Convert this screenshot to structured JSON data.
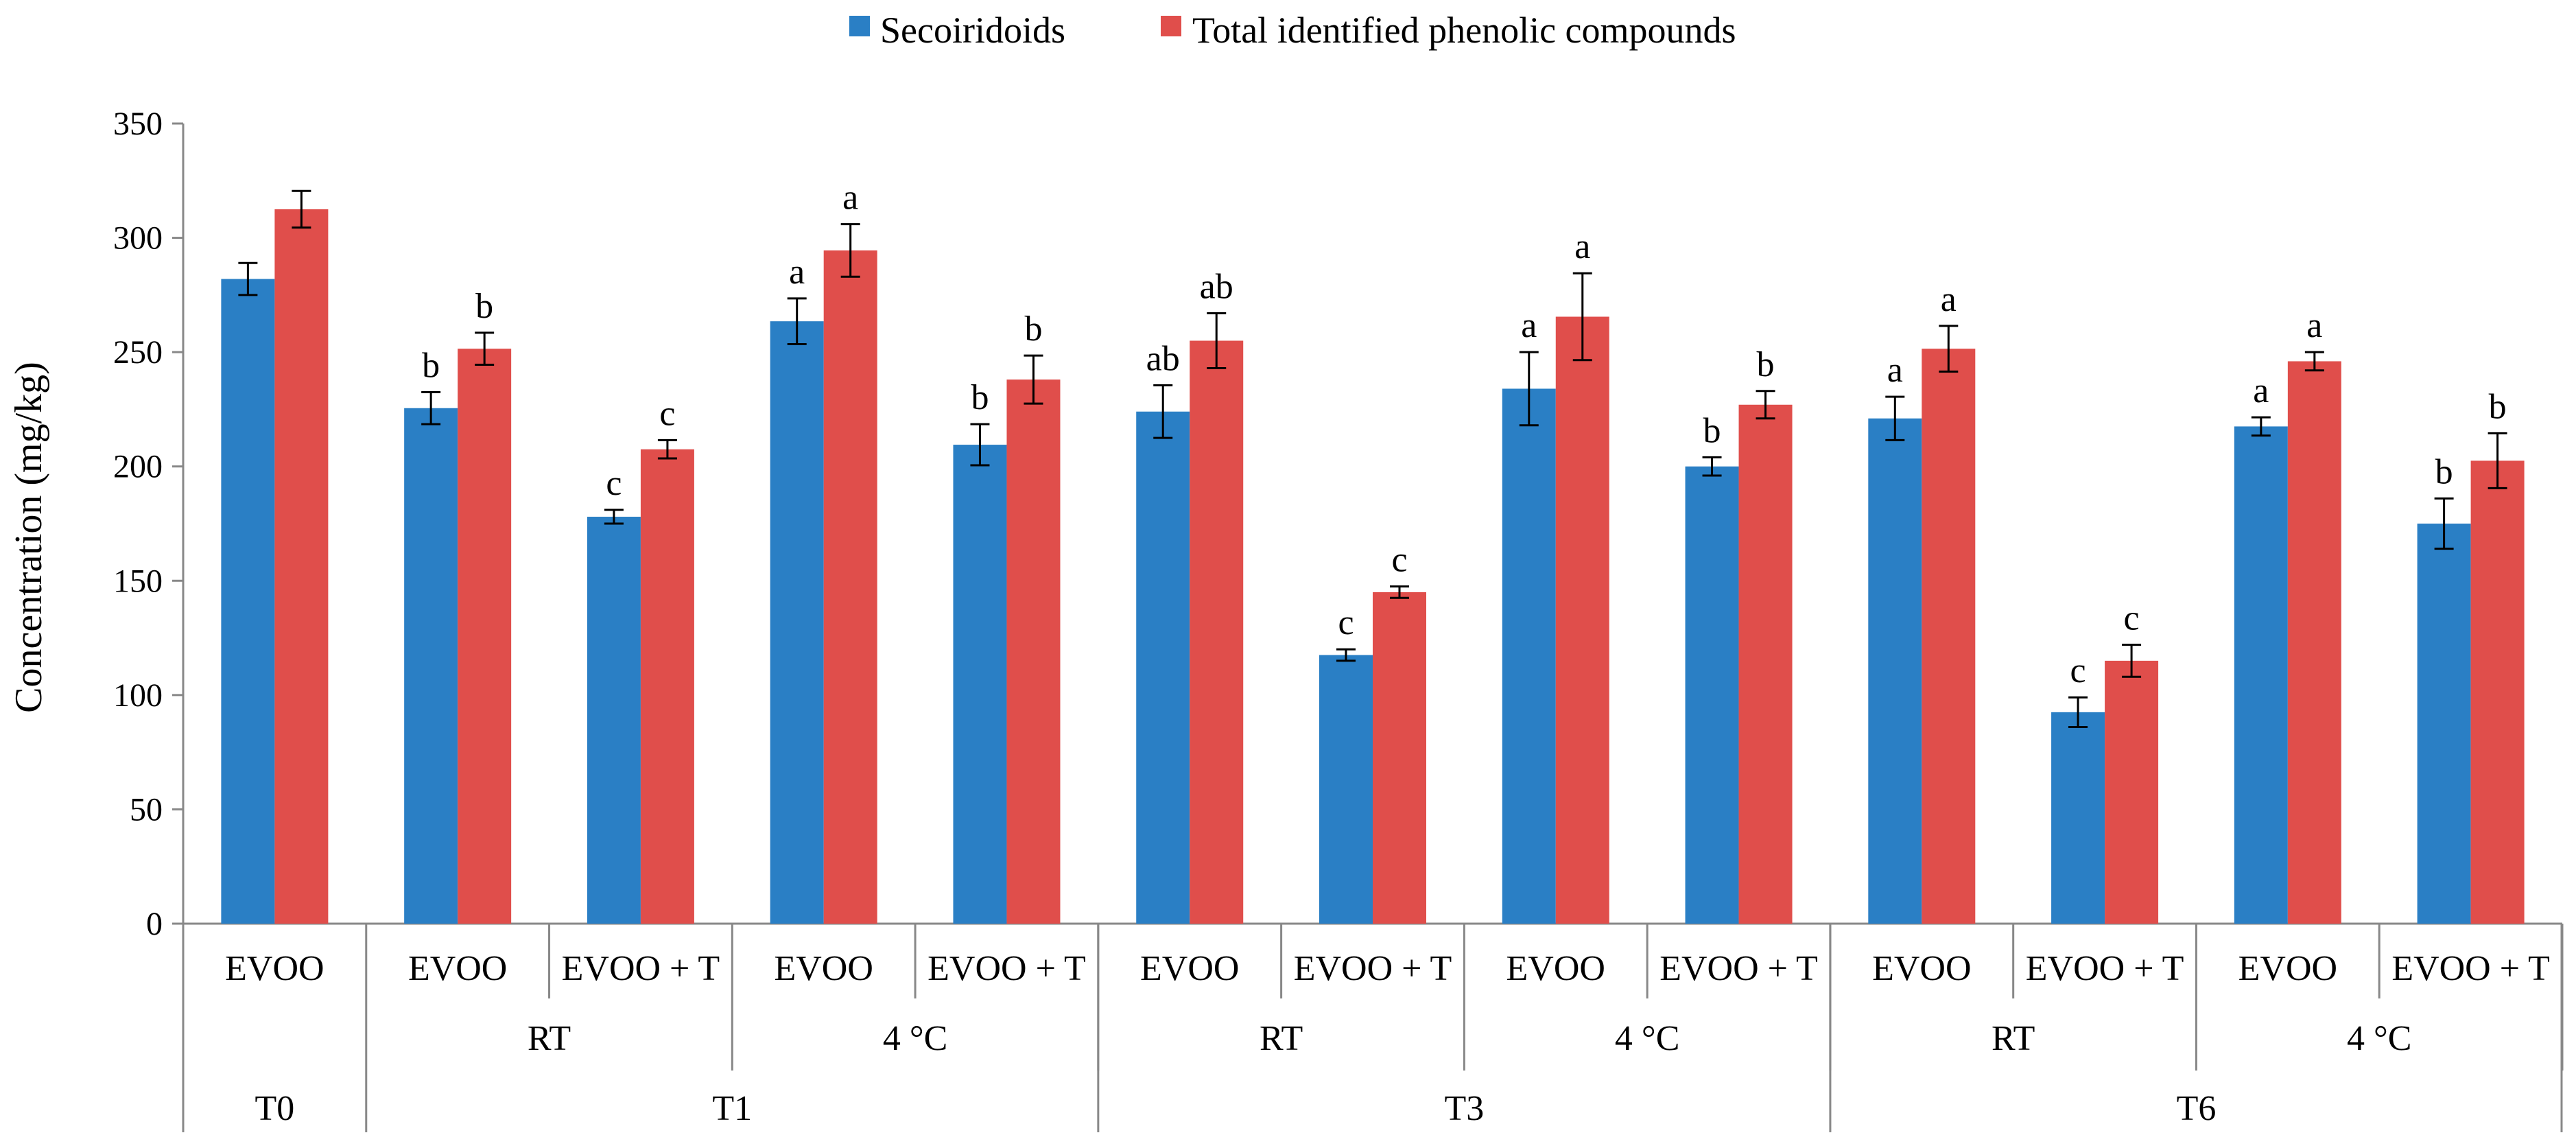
{
  "chart_data": {
    "type": "bar",
    "title": "",
    "ylabel": "Concentration (mg/kg)",
    "xlabel": "",
    "ylim": [
      0,
      350
    ],
    "yticks": [
      0,
      50,
      100,
      150,
      200,
      250,
      300,
      350
    ],
    "legend_position": "top-center",
    "categories": [
      "EVOO",
      "EVOO",
      "EVOO + T",
      "EVOO",
      "EVOO + T",
      "EVOO",
      "EVOO + T",
      "EVOO",
      "EVOO + T",
      "EVOO",
      "EVOO + T",
      "EVOO",
      "EVOO + T"
    ],
    "storage_groups": [
      {
        "label": "RT",
        "from": 1,
        "to": 2
      },
      {
        "label": "4 °C",
        "from": 3,
        "to": 4
      },
      {
        "label": "RT",
        "from": 5,
        "to": 6
      },
      {
        "label": "4 °C",
        "from": 7,
        "to": 8
      },
      {
        "label": "RT",
        "from": 9,
        "to": 10
      },
      {
        "label": "4 °C",
        "from": 11,
        "to": 12
      }
    ],
    "time_groups": [
      {
        "label": "T0",
        "from": 0,
        "to": 0
      },
      {
        "label": "T1",
        "from": 1,
        "to": 4
      },
      {
        "label": "T3",
        "from": 5,
        "to": 8
      },
      {
        "label": "T6",
        "from": 9,
        "to": 12
      }
    ],
    "series": [
      {
        "name": "Secoiridoids",
        "color": "#2a7fc5",
        "values": [
          282,
          225.5,
          178,
          263.5,
          209.5,
          224,
          117.5,
          234,
          200,
          221,
          92.5,
          217.5,
          175
        ],
        "errors": [
          7,
          7,
          3,
          10,
          9,
          11.5,
          2.5,
          16,
          4,
          9.5,
          6.5,
          4,
          11
        ],
        "labels": [
          "",
          "b",
          "c",
          "a",
          "b",
          "ab",
          "c",
          "a",
          "b",
          "a",
          "c",
          "a",
          "b"
        ]
      },
      {
        "name": "Total identified phenolic compounds",
        "color": "#e04e4b",
        "values": [
          312.5,
          251.5,
          207.5,
          294.5,
          238,
          255,
          145,
          265.5,
          227,
          251.5,
          115,
          246,
          202.5
        ],
        "errors": [
          8,
          7,
          4,
          11.5,
          10.5,
          12,
          2.5,
          19,
          6,
          10,
          7,
          4,
          12
        ],
        "labels": [
          "",
          "b",
          "c",
          "a",
          "b",
          "ab",
          "c",
          "a",
          "b",
          "a",
          "c",
          "a",
          "b"
        ]
      }
    ]
  }
}
